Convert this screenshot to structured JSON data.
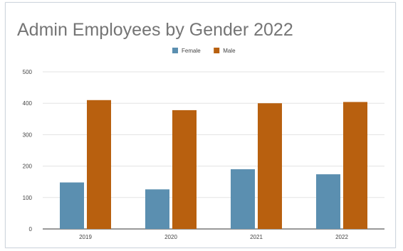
{
  "chart_data": {
    "type": "bar",
    "title": "Admin Employees by Gender 2022",
    "xlabel": "",
    "ylabel": "",
    "categories": [
      "2019",
      "2020",
      "2021",
      "2022"
    ],
    "series": [
      {
        "name": "Female",
        "color": "#5b8fb0",
        "values": [
          148,
          126,
          190,
          174
        ]
      },
      {
        "name": "Male",
        "color": "#b8600f",
        "values": [
          410,
          378,
          400,
          404
        ]
      }
    ],
    "ylim": [
      0,
      500
    ],
    "yticks": [
      "0",
      "100",
      "200",
      "300",
      "400",
      "500"
    ],
    "grid": true,
    "legend_position": "top-center"
  }
}
